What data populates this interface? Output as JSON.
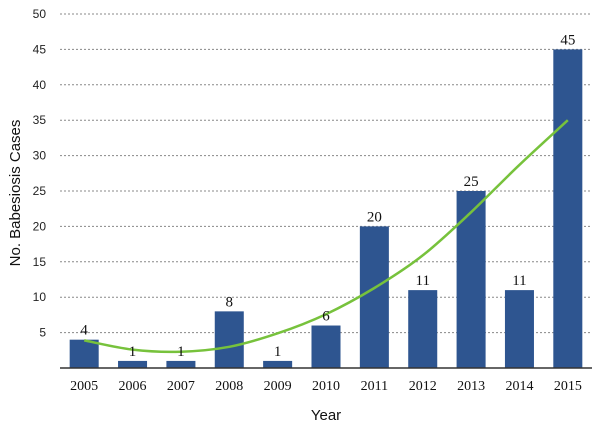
{
  "chart_data": {
    "type": "bar",
    "categories": [
      "2005",
      "2006",
      "2007",
      "2008",
      "2009",
      "2010",
      "2011",
      "2012",
      "2013",
      "2014",
      "2015"
    ],
    "values": [
      4,
      1,
      1,
      8,
      1,
      6,
      20,
      11,
      25,
      11,
      45
    ],
    "data_labels": [
      "4",
      "1",
      "1",
      "8",
      "1",
      "6",
      "20",
      "11",
      "25",
      "11",
      "45"
    ],
    "trendline": {
      "type": "polynomial",
      "x": [
        "2005",
        "2006",
        "2007",
        "2008",
        "2009",
        "2010",
        "2011",
        "2012",
        "2013",
        "2014",
        "2015"
      ],
      "y": [
        3.9,
        2.6,
        2.3,
        3.0,
        4.9,
        7.6,
        11.3,
        15.9,
        22.0,
        28.7,
        35.0
      ]
    },
    "title": "",
    "xlabel": "Year",
    "ylabel": "No. Babesiosis Cases",
    "ylim": [
      0,
      50
    ],
    "yticks": [
      5,
      10,
      15,
      20,
      25,
      30,
      35,
      40,
      45,
      50
    ],
    "grid": true,
    "legend": "none",
    "colors": {
      "bar": "#2e5590",
      "trendline": "#77c23c",
      "grid": "#888888"
    }
  }
}
